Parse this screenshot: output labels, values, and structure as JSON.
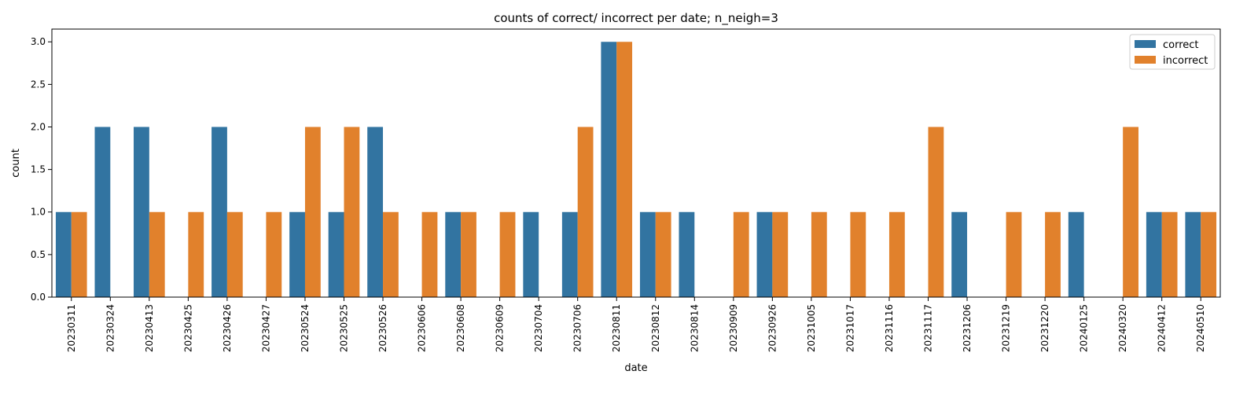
{
  "chart_data": {
    "type": "bar",
    "title": "counts of correct/ incorrect per date; n_neigh=3",
    "xlabel": "date",
    "ylabel": "count",
    "ylim": [
      0,
      3.15
    ],
    "yticks": [
      "0.0",
      "0.5",
      "1.0",
      "1.5",
      "2.0",
      "2.5",
      "3.0"
    ],
    "grid": false,
    "legend_position": "top-right",
    "categories": [
      "20230311",
      "20230324",
      "20230413",
      "20230425",
      "20230426",
      "20230427",
      "20230524",
      "20230525",
      "20230526",
      "20230606",
      "20230608",
      "20230609",
      "20230704",
      "20230706",
      "20230811",
      "20230812",
      "20230814",
      "20230909",
      "20230926",
      "20231005",
      "20231017",
      "20231116",
      "20231117",
      "20231206",
      "20231219",
      "20231220",
      "20240125",
      "20240320",
      "20240412",
      "20240510"
    ],
    "series": [
      {
        "name": "correct",
        "color": "#3274a1",
        "values": [
          1,
          2,
          2,
          0,
          2,
          0,
          1,
          1,
          2,
          0,
          1,
          0,
          1,
          1,
          3,
          1,
          1,
          0,
          1,
          0,
          0,
          0,
          0,
          1,
          0,
          0,
          1,
          0,
          1,
          1
        ]
      },
      {
        "name": "incorrect",
        "color": "#e1812c",
        "values": [
          1,
          0,
          1,
          1,
          1,
          1,
          2,
          2,
          1,
          1,
          1,
          1,
          0,
          2,
          3,
          1,
          0,
          1,
          1,
          1,
          1,
          1,
          2,
          0,
          1,
          1,
          0,
          2,
          1,
          1
        ]
      }
    ]
  }
}
